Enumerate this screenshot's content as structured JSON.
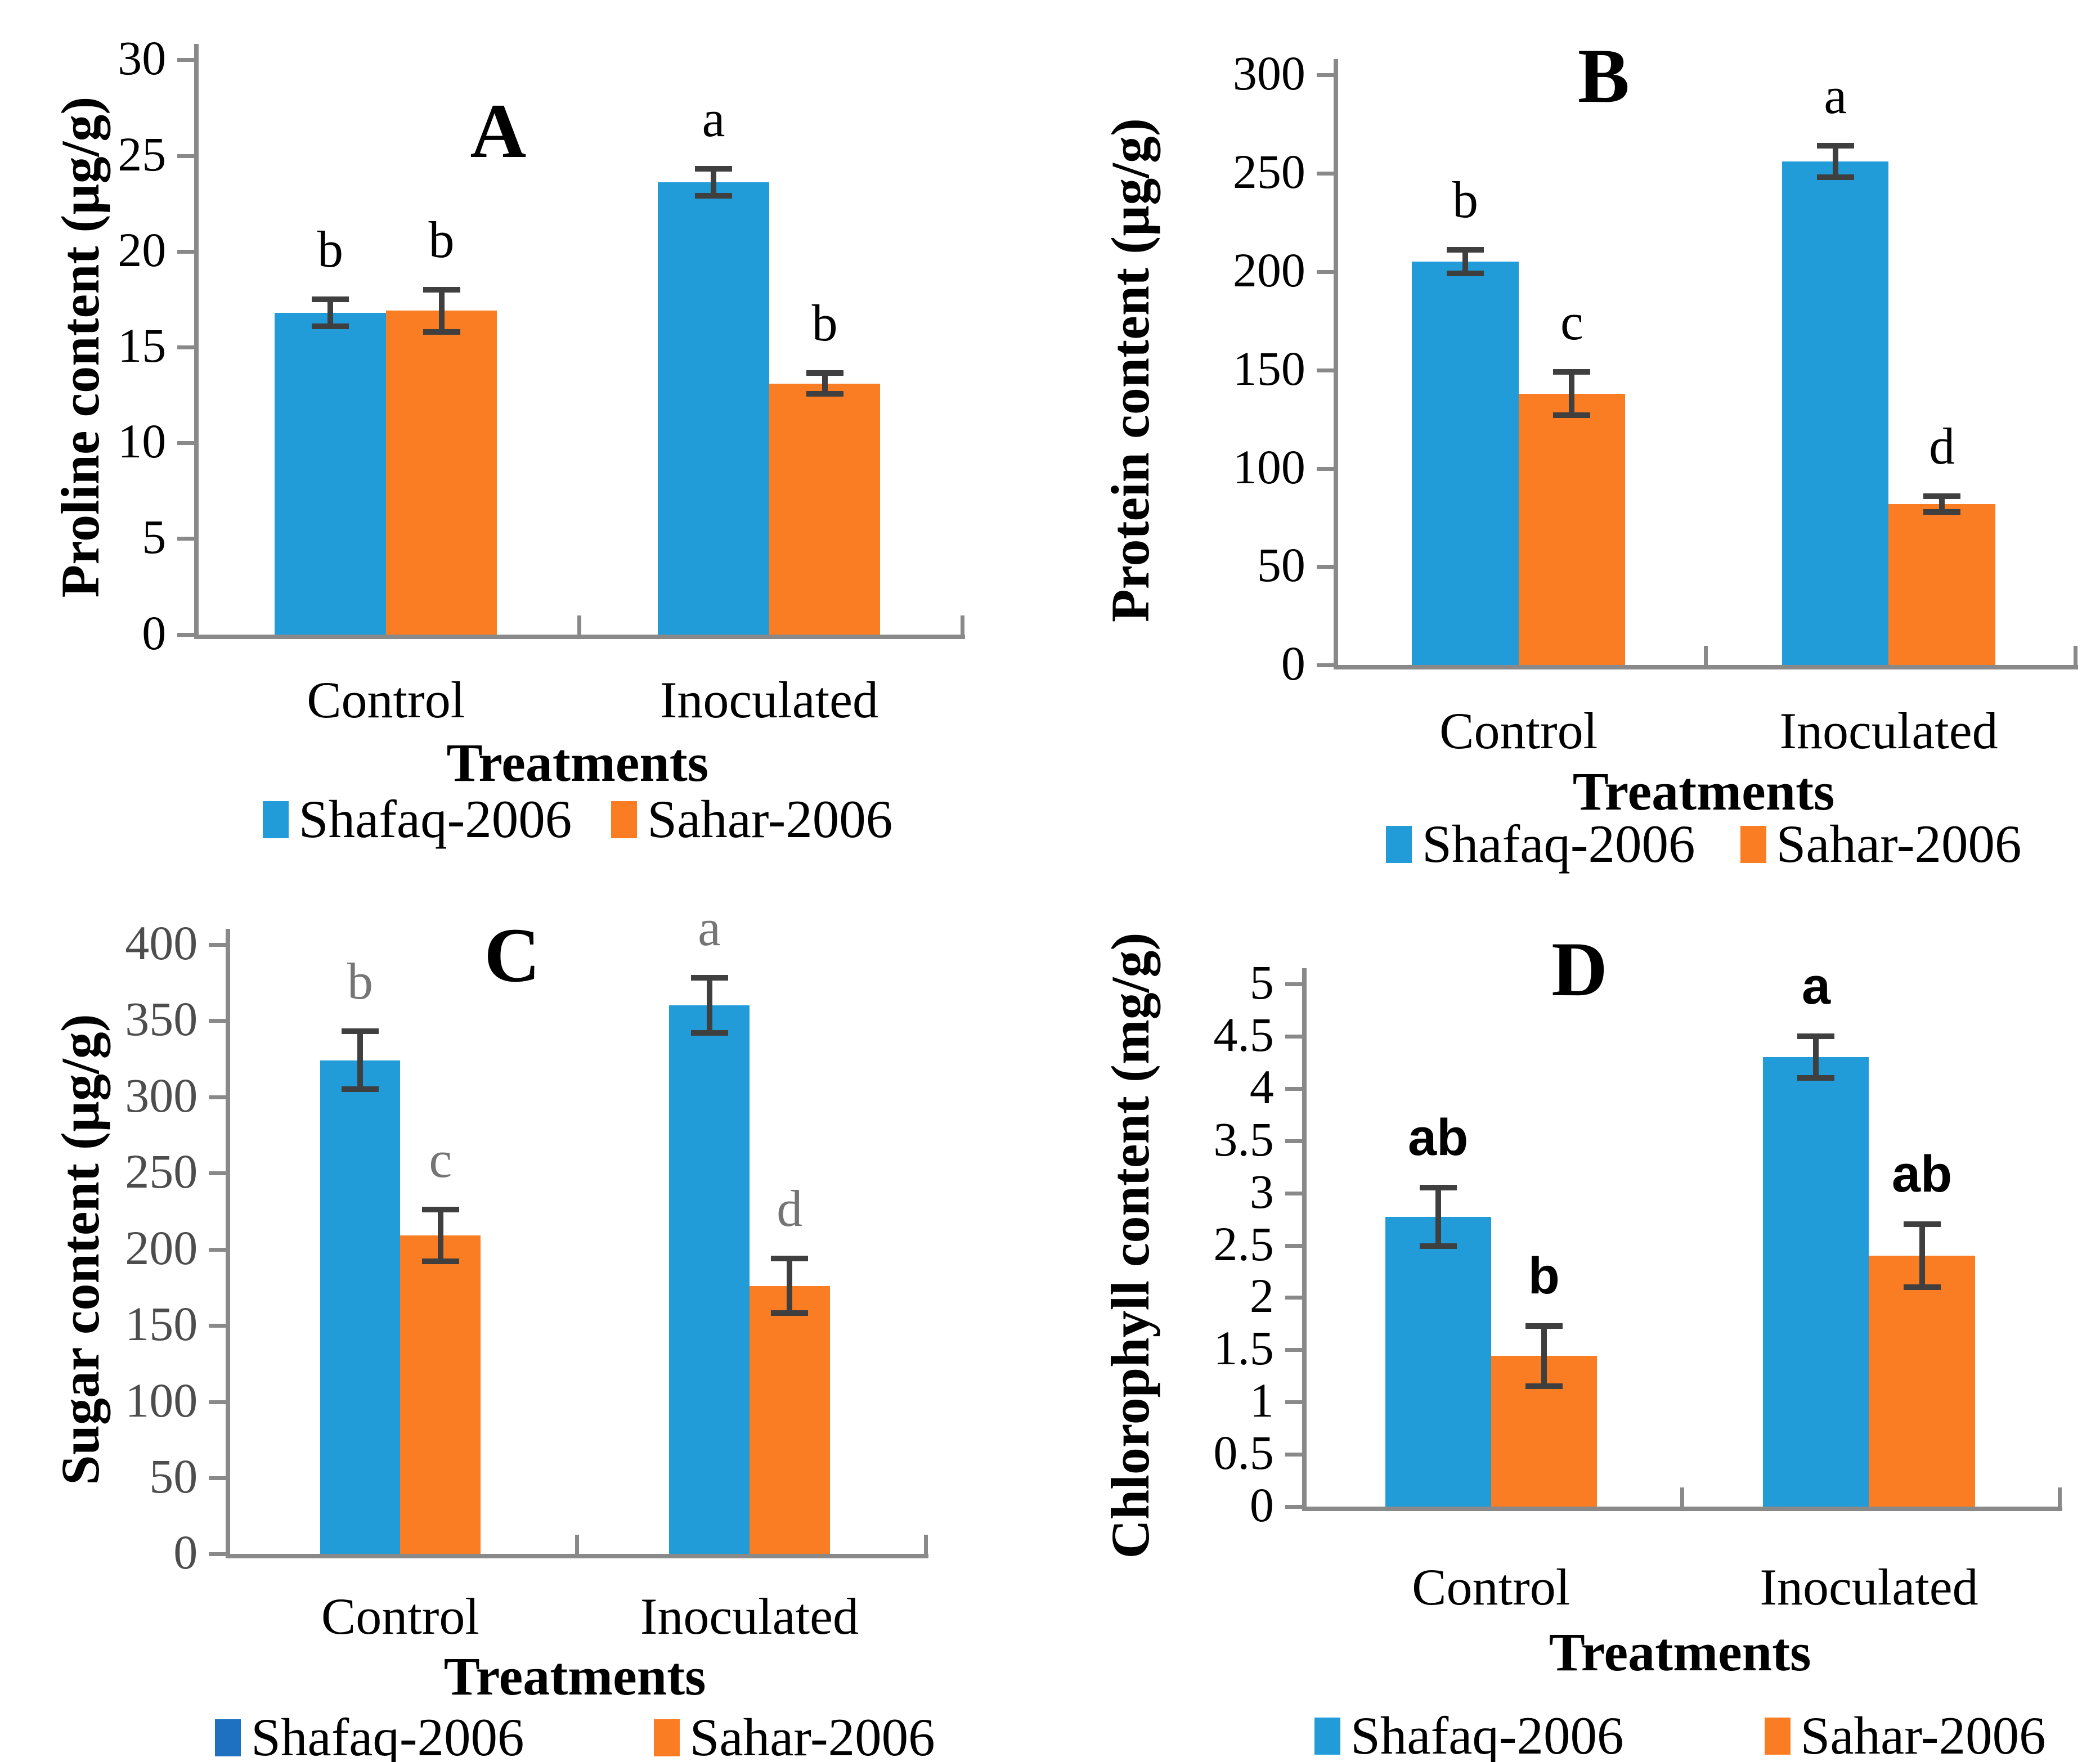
{
  "figure_title": "",
  "series_names": [
    "Shafaq-2006",
    "Sahar-2006"
  ],
  "colors": {
    "shafaq_bar": "#219CD9",
    "sahar_bar": "#FB7D23",
    "shafaq_legend_dark_blue_panel_c": "#1E70C1",
    "error_bar": "#3F3F3F",
    "axis_gray": "#898989"
  },
  "chart_data": [
    {
      "id": "A",
      "panel_label": "A",
      "type": "bar",
      "ylabel": "Proline content (µg/g)",
      "xlabel": "Treatments",
      "categories": [
        "Control",
        "Inoculated"
      ],
      "ylim": [
        0,
        30
      ],
      "yticks": [
        "0",
        "5",
        "10",
        "15",
        "20",
        "25",
        "30"
      ],
      "grid": "off",
      "legend_position": "bottom-center",
      "series": [
        {
          "name": "Shafaq-2006",
          "color": "#219CD9",
          "values": [
            16.8,
            23.6
          ],
          "errors": [
            0.7,
            0.7
          ],
          "letters": [
            "b",
            "a"
          ]
        },
        {
          "name": "Sahar-2006",
          "color": "#FB7D23",
          "values": [
            16.9,
            13.1
          ],
          "errors": [
            1.1,
            0.55
          ],
          "letters": [
            "b",
            "b"
          ]
        }
      ],
      "letters_color": "#000000",
      "tick_color": "#000000",
      "legend": [
        {
          "label": "Shafaq-2006",
          "color": "#219CD9"
        },
        {
          "label": "Sahar-2006",
          "color": "#FB7D23"
        }
      ]
    },
    {
      "id": "B",
      "panel_label": "B",
      "type": "bar",
      "ylabel": "Protein content (µg/g)",
      "xlabel": "Treatments",
      "categories": [
        "Control",
        "Inoculated"
      ],
      "ylim": [
        0,
        300
      ],
      "yticks": [
        "0",
        "50",
        "100",
        "150",
        "200",
        "250",
        "300"
      ],
      "grid": "off",
      "legend_position": "bottom-center",
      "series": [
        {
          "name": "Shafaq-2006",
          "color": "#219CD9",
          "values": [
            205,
            256
          ],
          "errors": [
            6,
            8
          ],
          "letters": [
            "b",
            "a"
          ]
        },
        {
          "name": "Sahar-2006",
          "color": "#FB7D23",
          "values": [
            138,
            82
          ],
          "errors": [
            11,
            4
          ],
          "letters": [
            "c",
            "d"
          ]
        }
      ],
      "letters_color": "#000000",
      "tick_color": "#000000",
      "legend": [
        {
          "label": "Shafaq-2006",
          "color": "#219CD9"
        },
        {
          "label": "Sahar-2006",
          "color": "#FB7D23"
        }
      ]
    },
    {
      "id": "C",
      "panel_label": "C",
      "type": "bar",
      "ylabel": "Sugar content (µg/g)",
      "xlabel": "Treatments",
      "categories": [
        "Control",
        "Inoculated"
      ],
      "ylim": [
        0,
        400
      ],
      "yticks": [
        "0",
        "50",
        "100",
        "150",
        "200",
        "250",
        "300",
        "350",
        "400"
      ],
      "grid": "off",
      "legend_position": "bottom-center",
      "series": [
        {
          "name": "Shafaq-2006",
          "color": "#219CD9",
          "values": [
            324,
            360
          ],
          "errors": [
            19,
            18
          ],
          "letters": [
            "b",
            "a"
          ]
        },
        {
          "name": "Sahar-2006",
          "color": "#FB7D23",
          "values": [
            209,
            176
          ],
          "errors": [
            17,
            18
          ],
          "letters": [
            "c",
            "d"
          ]
        }
      ],
      "letters_color": "#757575",
      "tick_color": "#4D4D4D",
      "legend": [
        {
          "label": "Shafaq-2006",
          "color": "#1E70C1"
        },
        {
          "label": "Sahar-2006",
          "color": "#FB7D23"
        }
      ]
    },
    {
      "id": "D",
      "panel_label": "D",
      "type": "bar",
      "ylabel": "Chlorophyll content (mg/g)",
      "xlabel": "Treatments",
      "categories": [
        "Control",
        "Inoculated"
      ],
      "ylim": [
        0,
        5
      ],
      "yticks": [
        "0",
        "0.5",
        "1",
        "1.5",
        "2",
        "2.5",
        "3",
        "3.5",
        "4",
        "4.5",
        "5"
      ],
      "grid": "off",
      "legend_position": "bottom-center",
      "series": [
        {
          "name": "Shafaq-2006",
          "color": "#219CD9",
          "values": [
            2.77,
            4.3
          ],
          "errors": [
            0.28,
            0.2
          ],
          "letters": [
            "ab",
            "a"
          ]
        },
        {
          "name": "Sahar-2006",
          "color": "#FB7D23",
          "values": [
            1.44,
            2.4
          ],
          "errors": [
            0.29,
            0.3
          ],
          "letters": [
            "b",
            "ab"
          ]
        }
      ],
      "letters_color": "#000000",
      "tick_color": "#000000",
      "legend": [
        {
          "label": "Shafaq-2006",
          "color": "#219CD9"
        },
        {
          "label": "Sahar-2006",
          "color": "#FB7D23"
        }
      ]
    }
  ]
}
